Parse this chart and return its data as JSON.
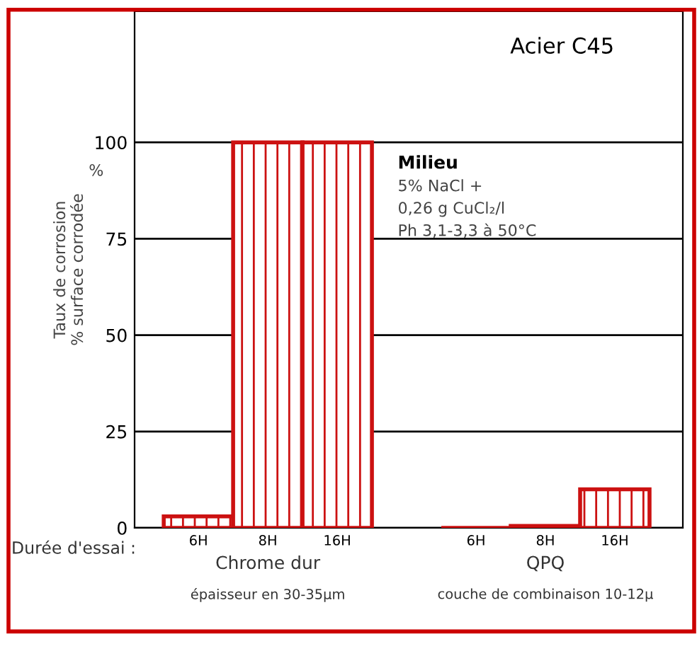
{
  "chart_data": {
    "type": "bar",
    "title": "Acier C45",
    "ylabel": "Taux de corrosion\n% surface corrodée",
    "categories": [
      "6H",
      "8H",
      "16H",
      null,
      "6H",
      "8H",
      "16H"
    ],
    "series": [
      {
        "color": "#cc1111",
        "values": [
          3,
          100,
          100,
          null,
          0,
          0.5,
          10
        ]
      }
    ],
    "ylim": [
      0,
      134
    ],
    "yticks": [
      0,
      25,
      50,
      75,
      100
    ],
    "grid": "y",
    "annotations": [
      "Milieu",
      "5% NaCl +\n0,26 g CuCl₂/l\nPh 3,1-3,3 à 50°C",
      "%",
      "Durée d'essai :",
      "Chrome dur",
      "épaisseur en 30-35µm",
      "QPQ",
      "couche de combinaison 10-12µ"
    ]
  }
}
